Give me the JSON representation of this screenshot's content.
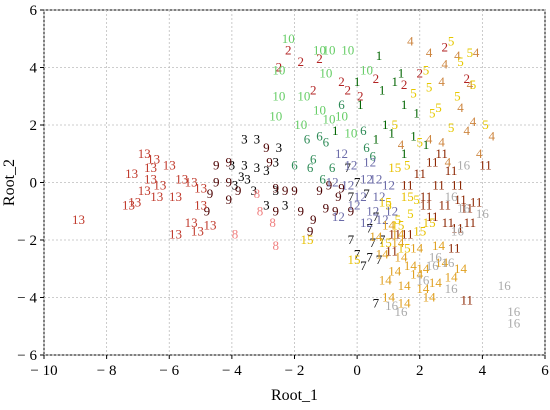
{
  "chart_data": {
    "type": "scatter",
    "xlabel": "Root_1",
    "ylabel": "Root_2",
    "xlim": [
      -10,
      6
    ],
    "ylim": [
      -6,
      6
    ],
    "x_ticks": [
      "− 10",
      "− 8",
      "− 6",
      "− 4",
      "− 2",
      "0",
      "2",
      "4",
      "6"
    ],
    "y_ticks": [
      "6",
      "4",
      "2",
      "0",
      "− 2",
      "− 4",
      "− 6"
    ],
    "x_tick_values": [
      -10,
      -8,
      -6,
      -4,
      -2,
      0,
      2,
      4,
      6
    ],
    "y_tick_values": [
      6,
      4,
      2,
      0,
      -2,
      -4,
      -6
    ],
    "grid": true,
    "marker": "group number label",
    "series": [
      {
        "label": "1",
        "color": "#006400",
        "points": [
          [
            0.7,
            4.4
          ],
          [
            0.0,
            3.5
          ],
          [
            1.2,
            3.5
          ],
          [
            1.4,
            3.8
          ],
          [
            0.1,
            2.7
          ],
          [
            0.9,
            2.0
          ],
          [
            1.5,
            2.7
          ],
          [
            1.8,
            1.6
          ],
          [
            1.1,
            1.7
          ],
          [
            -0.7,
            1.8
          ],
          [
            0.6,
            1.5
          ],
          [
            2.2,
            1.3
          ],
          [
            1.5,
            1.0
          ],
          [
            0.8,
            3.2
          ],
          [
            1.9,
            2.4
          ]
        ]
      },
      {
        "label": "2",
        "color": "#b22222",
        "points": [
          [
            -1.8,
            4.2
          ],
          [
            -2.2,
            4.6
          ],
          [
            -2.5,
            4.0
          ],
          [
            -1.2,
            4.3
          ],
          [
            -0.5,
            3.5
          ],
          [
            0.1,
            3.0
          ],
          [
            1.5,
            3.4
          ],
          [
            2.8,
            4.7
          ],
          [
            -1.4,
            3.2
          ],
          [
            -0.3,
            3.2
          ],
          [
            2.0,
            3.8
          ],
          [
            3.5,
            3.6
          ],
          [
            0.6,
            3.6
          ]
        ]
      },
      {
        "label": "3",
        "color": "#000000",
        "points": [
          [
            -3.6,
            1.5
          ],
          [
            -3.2,
            1.5
          ],
          [
            -4.0,
            0.6
          ],
          [
            -3.6,
            0.6
          ],
          [
            -3.2,
            0.5
          ],
          [
            -3.5,
            0.1
          ],
          [
            -2.9,
            0.4
          ],
          [
            -2.6,
            0.7
          ],
          [
            -3.3,
            -0.3
          ],
          [
            -2.6,
            -0.3
          ],
          [
            -3.9,
            -0.1
          ],
          [
            -2.9,
            -0.8
          ],
          [
            -2.3,
            -0.8
          ],
          [
            -3.7,
            0.2
          ],
          [
            -2.5,
            1.2
          ]
        ]
      },
      {
        "label": "4",
        "color": "#cd853f",
        "points": [
          [
            2.3,
            4.5
          ],
          [
            1.7,
            4.9
          ],
          [
            3.2,
            4.4
          ],
          [
            3.8,
            4.5
          ],
          [
            2.8,
            4.1
          ],
          [
            3.6,
            3.4
          ],
          [
            2.7,
            3.5
          ],
          [
            3.3,
            2.6
          ],
          [
            3.7,
            2.1
          ],
          [
            3.5,
            1.8
          ],
          [
            2.3,
            1.5
          ],
          [
            4.3,
            1.6
          ],
          [
            2.7,
            1.4
          ],
          [
            3.9,
            1.0
          ],
          [
            1.4,
            1.3
          ],
          [
            2.9,
            0.7
          ]
        ]
      },
      {
        "label": "5",
        "color": "#e6c800",
        "points": [
          [
            3.0,
            4.9
          ],
          [
            3.6,
            4.5
          ],
          [
            3.3,
            4.2
          ],
          [
            2.2,
            3.9
          ],
          [
            2.3,
            3.3
          ],
          [
            1.8,
            3.1
          ],
          [
            3.2,
            3.0
          ],
          [
            3.7,
            3.4
          ],
          [
            2.4,
            2.4
          ],
          [
            1.2,
            2.0
          ],
          [
            3.0,
            1.9
          ],
          [
            2.0,
            1.4
          ],
          [
            1.6,
            0.6
          ],
          [
            1.9,
            -0.6
          ],
          [
            1.7,
            -1.1
          ],
          [
            1.0,
            -0.8
          ],
          [
            1.3,
            -1.3
          ],
          [
            2.6,
            2.6
          ],
          [
            4.1,
            2.0
          ]
        ]
      },
      {
        "label": "6",
        "color": "#2e8b57",
        "points": [
          [
            -1.6,
            1.5
          ],
          [
            -1.2,
            1.6
          ],
          [
            -1.0,
            1.4
          ],
          [
            -1.4,
            0.8
          ],
          [
            -1.5,
            0.5
          ],
          [
            -0.8,
            0.5
          ],
          [
            -1.1,
            0.1
          ],
          [
            0.3,
            1.2
          ],
          [
            0.5,
            0.9
          ],
          [
            0.2,
            1.8
          ],
          [
            -0.5,
            2.7
          ],
          [
            -2.0,
            0.6
          ]
        ]
      },
      {
        "label": "7",
        "color": "#111111",
        "points": [
          [
            -0.3,
            0.5
          ],
          [
            0.0,
            0.0
          ],
          [
            -0.2,
            -0.5
          ],
          [
            0.3,
            -0.4
          ],
          [
            0.6,
            -1.2
          ],
          [
            0.4,
            -1.6
          ],
          [
            -0.2,
            -2.0
          ],
          [
            0.0,
            -2.5
          ],
          [
            0.4,
            -2.6
          ],
          [
            0.8,
            -2.0
          ],
          [
            0.7,
            -2.7
          ],
          [
            0.2,
            -2.9
          ],
          [
            0.5,
            -2.1
          ],
          [
            0.6,
            -4.2
          ]
        ]
      },
      {
        "label": "8",
        "color": "#f08080",
        "points": [
          [
            -3.2,
            -0.4
          ],
          [
            -3.1,
            -1.0
          ],
          [
            -2.7,
            -1.4
          ],
          [
            -2.6,
            -2.2
          ],
          [
            -3.9,
            -1.8
          ]
        ]
      },
      {
        "label": "9",
        "color": "#4b0000",
        "points": [
          [
            -4.5,
            0.6
          ],
          [
            -4.1,
            0.7
          ],
          [
            -4.5,
            0.0
          ],
          [
            -4.1,
            0.0
          ],
          [
            -3.8,
            -0.3
          ],
          [
            -4.1,
            -0.6
          ],
          [
            -4.7,
            -0.4
          ],
          [
            -2.6,
            -0.2
          ],
          [
            -2.3,
            -0.3
          ],
          [
            -2.0,
            -0.3
          ],
          [
            -1.8,
            -1.0
          ],
          [
            -2.6,
            -1.0
          ],
          [
            -1.2,
            -0.3
          ],
          [
            -0.9,
            -0.1
          ],
          [
            -1.0,
            -0.9
          ],
          [
            -1.4,
            -1.3
          ],
          [
            -0.7,
            -1.0
          ],
          [
            -0.6,
            -0.5
          ],
          [
            -0.2,
            -1.0
          ],
          [
            -0.5,
            -0.2
          ],
          [
            -2.8,
            0.7
          ],
          [
            -2.9,
            1.2
          ],
          [
            -1.5,
            -1.7
          ],
          [
            -4.8,
            -1.0
          ]
        ]
      },
      {
        "label": "10",
        "color": "#66cd66",
        "points": [
          [
            -2.2,
            5.0
          ],
          [
            -1.2,
            4.6
          ],
          [
            -2.5,
            3.9
          ],
          [
            -1.0,
            3.8
          ],
          [
            -2.5,
            3.0
          ],
          [
            -1.7,
            3.0
          ],
          [
            -2.6,
            2.3
          ],
          [
            -1.8,
            2.0
          ],
          [
            -1.2,
            2.5
          ],
          [
            -0.9,
            2.2
          ],
          [
            -0.3,
            4.6
          ],
          [
            -0.9,
            4.6
          ],
          [
            -0.5,
            2.3
          ],
          [
            -0.2,
            1.7
          ],
          [
            0.3,
            3.9
          ]
        ]
      },
      {
        "label": "11",
        "color": "#8b2500",
        "points": [
          [
            2.7,
            1.0
          ],
          [
            2.4,
            0.7
          ],
          [
            3.0,
            0.4
          ],
          [
            2.0,
            0.3
          ],
          [
            2.6,
            -0.1
          ],
          [
            3.2,
            -0.1
          ],
          [
            2.2,
            -0.5
          ],
          [
            2.8,
            -0.8
          ],
          [
            3.3,
            -0.6
          ],
          [
            3.8,
            -0.7
          ],
          [
            3.5,
            -0.9
          ],
          [
            2.4,
            -1.2
          ],
          [
            2.9,
            -1.4
          ],
          [
            3.6,
            -1.4
          ],
          [
            1.6,
            -0.1
          ],
          [
            1.2,
            -1.8
          ],
          [
            1.6,
            -1.8
          ],
          [
            3.1,
            -2.3
          ],
          [
            3.5,
            -4.1
          ],
          [
            1.1,
            -2.4
          ],
          [
            3.2,
            -1.6
          ],
          [
            4.1,
            0.6
          ],
          [
            2.2,
            -0.8
          ]
        ]
      },
      {
        "label": "12",
        "color": "#6a6aa8",
        "points": [
          [
            -0.5,
            1.0
          ],
          [
            0.4,
            0.7
          ],
          [
            -0.8,
            0.0
          ],
          [
            -0.3,
            -0.1
          ],
          [
            0.1,
            -0.5
          ],
          [
            0.3,
            0.1
          ],
          [
            0.6,
            0.1
          ],
          [
            1.0,
            -0.1
          ],
          [
            -0.1,
            -0.8
          ],
          [
            0.5,
            -1.0
          ],
          [
            0.8,
            -1.3
          ],
          [
            0.3,
            -1.4
          ],
          [
            -0.6,
            -1.2
          ],
          [
            1.1,
            -1.0
          ],
          [
            0.7,
            -0.5
          ],
          [
            -0.2,
            0.6
          ]
        ]
      },
      {
        "label": "13",
        "color": "#c0392b",
        "points": [
          [
            -6.8,
            1.0
          ],
          [
            -6.5,
            0.8
          ],
          [
            -6.0,
            0.6
          ],
          [
            -7.2,
            0.3
          ],
          [
            -6.6,
            0.1
          ],
          [
            -5.6,
            0.1
          ],
          [
            -6.3,
            -0.1
          ],
          [
            -6.8,
            -0.3
          ],
          [
            -5.3,
            0.0
          ],
          [
            -5.0,
            -0.2
          ],
          [
            -7.1,
            -0.7
          ],
          [
            -6.4,
            -0.5
          ],
          [
            -5.8,
            -0.5
          ],
          [
            -5.3,
            -1.4
          ],
          [
            -5.8,
            -1.8
          ],
          [
            -5.1,
            -1.7
          ],
          [
            -4.7,
            -1.5
          ],
          [
            -8.9,
            -1.3
          ],
          [
            -5.0,
            -0.8
          ],
          [
            -6.6,
            0.5
          ],
          [
            -7.3,
            -0.8
          ]
        ]
      },
      {
        "label": "14",
        "color": "#e0a020",
        "points": [
          [
            1.0,
            -1.5
          ],
          [
            0.6,
            -1.9
          ],
          [
            1.3,
            -2.1
          ],
          [
            0.8,
            -2.5
          ],
          [
            1.4,
            -2.6
          ],
          [
            1.7,
            -2.9
          ],
          [
            1.2,
            -3.1
          ],
          [
            1.9,
            -3.2
          ],
          [
            1.5,
            -3.6
          ],
          [
            2.1,
            -3.7
          ],
          [
            2.5,
            -3.5
          ],
          [
            2.1,
            -3.0
          ],
          [
            2.7,
            -2.8
          ],
          [
            0.9,
            -3.4
          ],
          [
            1.0,
            -4.0
          ],
          [
            1.5,
            -4.2
          ],
          [
            2.3,
            -4.0
          ],
          [
            3.0,
            -3.3
          ],
          [
            3.3,
            -3.0
          ],
          [
            2.6,
            -2.2
          ],
          [
            1.9,
            -2.3
          ],
          [
            1.3,
            -1.8
          ]
        ]
      },
      {
        "label": "15",
        "color": "#e8c000",
        "points": [
          [
            1.2,
            0.5
          ],
          [
            1.6,
            -0.5
          ],
          [
            0.9,
            -0.7
          ],
          [
            1.3,
            -1.5
          ],
          [
            -1.6,
            -2.0
          ],
          [
            -0.1,
            -2.7
          ],
          [
            0.9,
            -2.1
          ],
          [
            1.5,
            -2.3
          ],
          [
            2.0,
            -1.7
          ],
          [
            2.3,
            -1.4
          ]
        ]
      },
      {
        "label": "16",
        "color": "#aaaaaa",
        "points": [
          [
            3.4,
            0.6
          ],
          [
            3.0,
            -0.5
          ],
          [
            3.4,
            -0.9
          ],
          [
            4.0,
            -1.1
          ],
          [
            3.2,
            -1.7
          ],
          [
            2.5,
            -2.6
          ],
          [
            2.9,
            -2.8
          ],
          [
            2.1,
            -3.4
          ],
          [
            3.0,
            -3.7
          ],
          [
            4.7,
            -3.6
          ],
          [
            5.0,
            -4.5
          ],
          [
            5.0,
            -4.9
          ],
          [
            1.1,
            -4.3
          ],
          [
            1.4,
            -4.5
          ],
          [
            2.4,
            -2.9
          ]
        ]
      }
    ]
  }
}
